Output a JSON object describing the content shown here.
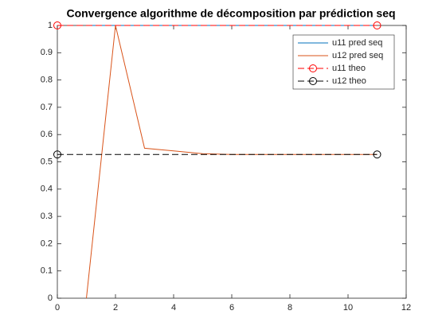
{
  "chart_data": {
    "type": "line",
    "title": "Convergence algorithme de décomposition par prédiction seq",
    "series": [
      {
        "name": "u11 pred seq",
        "color": "#0072bd",
        "dash": false,
        "marker": false,
        "x": [
          1,
          2,
          3,
          4,
          5,
          6,
          7,
          8,
          9,
          10,
          11
        ],
        "values": [
          1,
          1,
          1,
          1,
          1,
          1,
          1,
          1,
          1,
          1,
          1
        ]
      },
      {
        "name": "u12 pred seq",
        "color": "#d95319",
        "dash": false,
        "marker": false,
        "x": [
          1,
          2,
          3,
          4,
          5,
          6,
          7,
          8,
          9,
          10,
          11
        ],
        "values": [
          0,
          1,
          0.55,
          0.54,
          0.53,
          0.527,
          0.527,
          0.527,
          0.527,
          0.527,
          0.527
        ]
      },
      {
        "name": "u11 theo",
        "color": "#ff0000",
        "dash": true,
        "marker": true,
        "x": [
          0,
          11
        ],
        "values": [
          1,
          1
        ]
      },
      {
        "name": "u12 theo",
        "color": "#000000",
        "dash": true,
        "marker": true,
        "x": [
          0,
          11
        ],
        "values": [
          0.527,
          0.527
        ]
      }
    ],
    "xlim": [
      0,
      12
    ],
    "xticks": [
      0,
      2,
      4,
      6,
      8,
      10,
      12
    ],
    "ylim": [
      0,
      1
    ],
    "yticks": [
      0,
      0.1,
      0.2,
      0.3,
      0.4,
      0.5,
      0.6,
      0.7,
      0.8,
      0.9,
      1
    ],
    "legend": "top-right"
  }
}
